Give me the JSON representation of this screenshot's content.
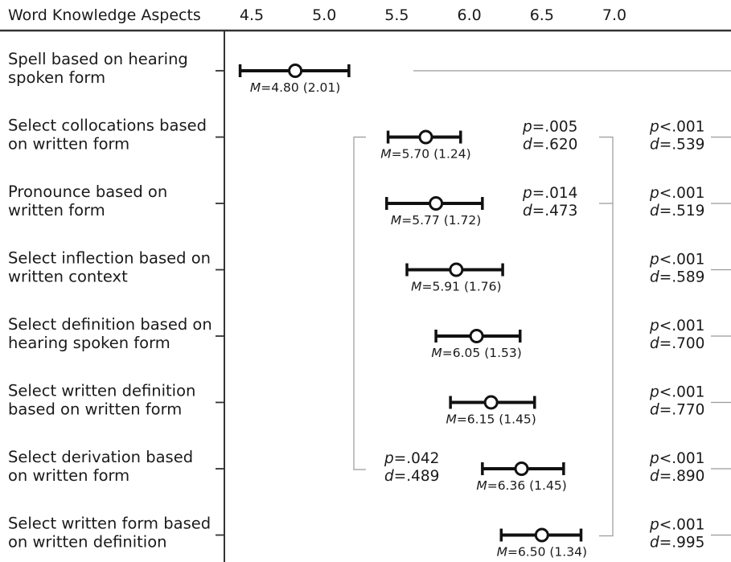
{
  "chart_data": {
    "type": "dot-whisker",
    "header_label": "Word Knowledge Aspects",
    "x_ticks": [
      "4.5",
      "5.0",
      "5.5",
      "6.0",
      "6.5",
      "7.0"
    ],
    "xlim": [
      4.5,
      7.0
    ],
    "items": [
      {
        "label_lines": [
          "Spell based on hearing",
          "spoken form"
        ],
        "mean": 4.8,
        "sd": 2.01,
        "ci": [
          4.42,
          5.17
        ],
        "m_text": "M",
        "m_rest": "=4.80 (2.01)",
        "right": null
      },
      {
        "label_lines": [
          "Select collocations based",
          "on written form"
        ],
        "mean": 5.7,
        "sd": 1.24,
        "ci": [
          5.44,
          5.94
        ],
        "m_text": "M",
        "m_rest": "=5.70 (1.24)",
        "right": {
          "p": "p",
          "p_rest": "<.001",
          "d": "d",
          "d_rest": "=.539"
        }
      },
      {
        "label_lines": [
          "Pronounce based on",
          "written form"
        ],
        "mean": 5.77,
        "sd": 1.72,
        "ci": [
          5.43,
          6.09
        ],
        "m_text": "M",
        "m_rest": "=5.77 (1.72)",
        "right": {
          "p": "p",
          "p_rest": "<.001",
          "d": "d",
          "d_rest": "=.519"
        }
      },
      {
        "label_lines": [
          "Select inflection based on",
          "written context"
        ],
        "mean": 5.91,
        "sd": 1.76,
        "ci": [
          5.57,
          6.23
        ],
        "m_text": "M",
        "m_rest": "=5.91 (1.76)",
        "right": {
          "p": "p",
          "p_rest": "<.001",
          "d": "d",
          "d_rest": "=.589"
        }
      },
      {
        "label_lines": [
          "Select definition based on",
          "hearing spoken form"
        ],
        "mean": 6.05,
        "sd": 1.53,
        "ci": [
          5.77,
          6.35
        ],
        "m_text": "M",
        "m_rest": "=6.05 (1.53)",
        "right": {
          "p": "p",
          "p_rest": "<.001",
          "d": "d",
          "d_rest": "=.700"
        }
      },
      {
        "label_lines": [
          "Select written definition",
          "based on written form"
        ],
        "mean": 6.15,
        "sd": 1.45,
        "ci": [
          5.87,
          6.45
        ],
        "m_text": "M",
        "m_rest": "=6.15 (1.45)",
        "right": {
          "p": "p",
          "p_rest": "<.001",
          "d": "d",
          "d_rest": "=.770"
        }
      },
      {
        "label_lines": [
          "Select derivation based",
          "on written form"
        ],
        "mean": 6.36,
        "sd": 1.45,
        "ci": [
          6.09,
          6.65
        ],
        "m_text": "M",
        "m_rest": "=6.36 (1.45)",
        "right": {
          "p": "p",
          "p_rest": "<.001",
          "d": "d",
          "d_rest": "=.890"
        }
      },
      {
        "label_lines": [
          "Select written form based",
          "on written definition"
        ],
        "mean": 6.5,
        "sd": 1.34,
        "ci": [
          6.22,
          6.77
        ],
        "m_text": "M",
        "m_rest": "=6.50 (1.34)",
        "right": {
          "p": "p",
          "p_rest": "<.001",
          "d": "d",
          "d_rest": "=.995"
        }
      }
    ],
    "middle_comparisons": [
      {
        "p": "p",
        "p_rest": "=.005",
        "d": "d",
        "d_rest": "=.620",
        "row": 1
      },
      {
        "p": "p",
        "p_rest": "=.014",
        "d": "d",
        "d_rest": "=.473",
        "row": 2
      },
      {
        "p": "p",
        "p_rest": "=.042",
        "d": "d",
        "d_rest": "=.489",
        "row": 6
      }
    ]
  }
}
